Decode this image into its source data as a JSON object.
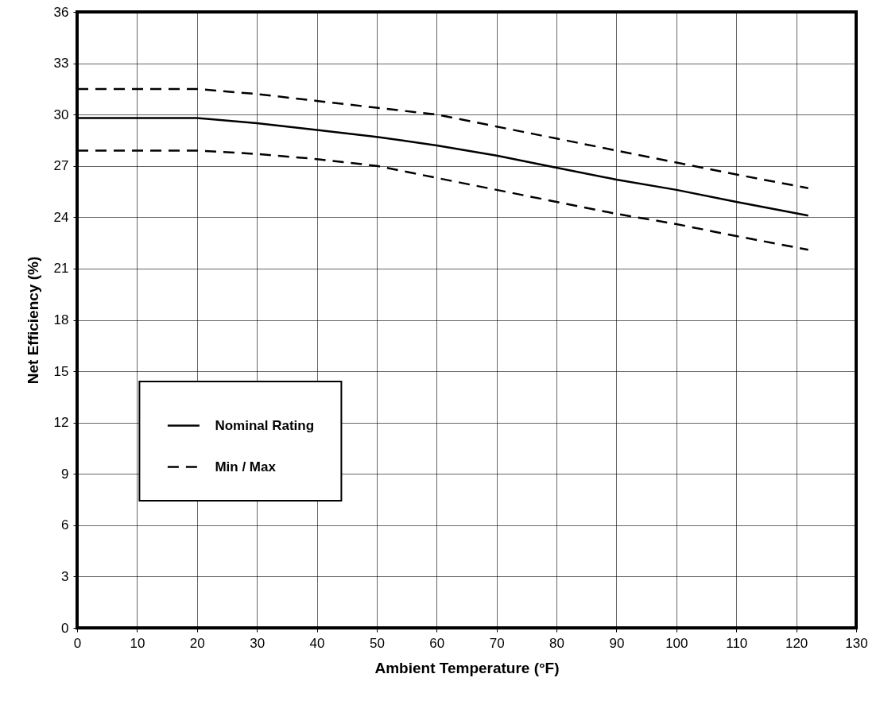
{
  "chart_data": {
    "type": "line",
    "xlabel": "Ambient Temperature (°F)",
    "ylabel": "Net Efficiency (%)",
    "xlim": [
      0,
      130
    ],
    "xticks": [
      0,
      10,
      20,
      30,
      40,
      50,
      60,
      70,
      80,
      90,
      100,
      110,
      120,
      130
    ],
    "ylim": [
      0,
      36
    ],
    "yticks": [
      0,
      3,
      6,
      9,
      12,
      15,
      18,
      21,
      24,
      27,
      30,
      33,
      36
    ],
    "grid": true,
    "legend": "bottom left",
    "marker": "none",
    "series": [
      {
        "name": "Nominal Rating",
        "color": "#000000",
        "line_style": "solid",
        "x": [
          0,
          10,
          20,
          30,
          40,
          50,
          60,
          70,
          80,
          90,
          100,
          110,
          122
        ],
        "values": [
          29.8,
          29.8,
          29.8,
          29.5,
          29.1,
          28.7,
          28.2,
          27.6,
          26.9,
          26.2,
          25.6,
          24.9,
          24.1
        ]
      },
      {
        "name": "Min / Max",
        "color": "#000000",
        "line_style": "dashed",
        "x": [
          0,
          10,
          20,
          30,
          40,
          50,
          60,
          70,
          80,
          90,
          100,
          110,
          122
        ],
        "values": [
          31.5,
          31.5,
          31.5,
          31.2,
          30.8,
          30.4,
          30.0,
          29.3,
          28.6,
          27.9,
          27.2,
          26.5,
          25.7
        ]
      },
      {
        "color": "#000000",
        "line_style": "dashed",
        "x": [
          0,
          10,
          20,
          30,
          40,
          50,
          60,
          70,
          80,
          90,
          100,
          110,
          122
        ],
        "values": [
          27.9,
          27.9,
          27.9,
          27.7,
          27.4,
          27.0,
          26.3,
          25.6,
          24.9,
          24.2,
          23.6,
          22.9,
          22.1
        ]
      }
    ]
  }
}
